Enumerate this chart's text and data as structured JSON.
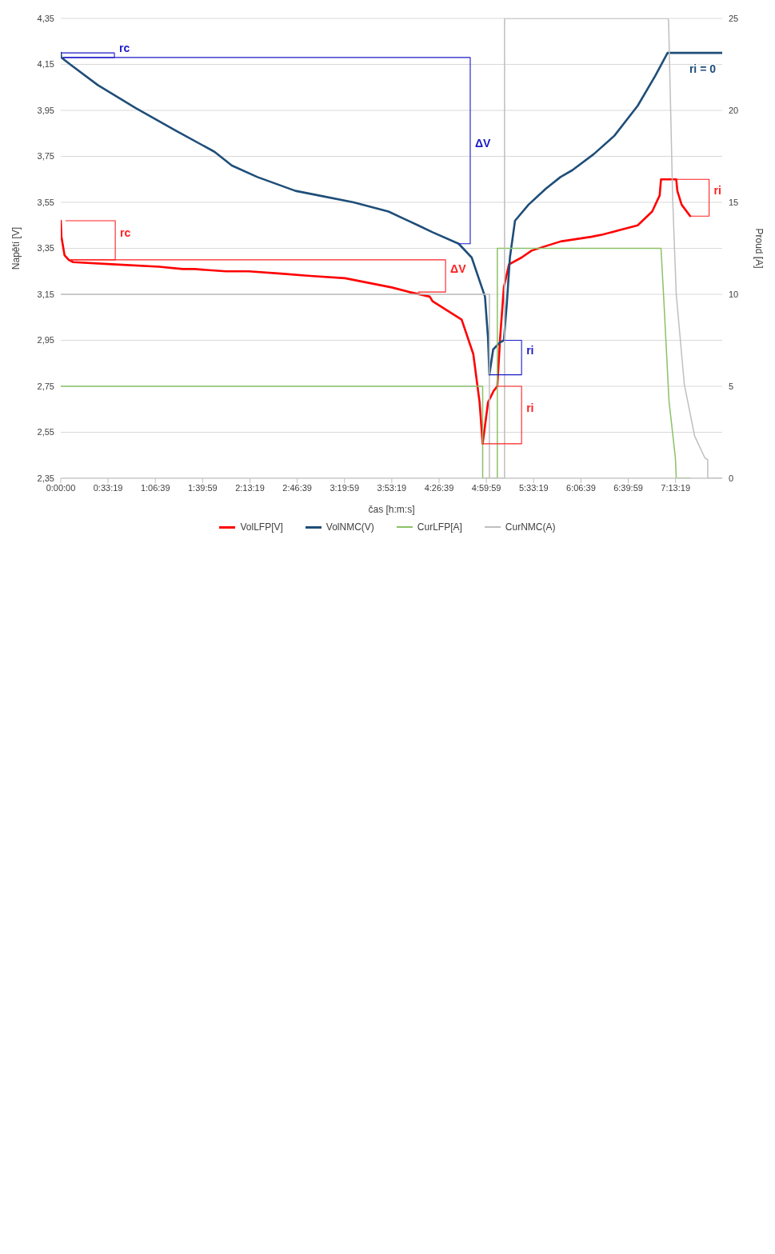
{
  "chart_data": {
    "type": "line",
    "xlabel": "čas [h:m:s]",
    "ylabel": "Napětí [V]",
    "y2label": "Proud [A]",
    "xlim": [
      0,
      7.77
    ],
    "xticks": [
      {
        "value": 0,
        "label": "0:00:00"
      },
      {
        "value": 0.5553,
        "label": "0:33:19"
      },
      {
        "value": 1.1108,
        "label": "1:06:39"
      },
      {
        "value": 1.6664,
        "label": "1:39:59"
      },
      {
        "value": 2.2219,
        "label": "2:13:19"
      },
      {
        "value": 2.7775,
        "label": "2:46:39"
      },
      {
        "value": 3.3331,
        "label": "3:19:59"
      },
      {
        "value": 3.8886,
        "label": "3:53:19"
      },
      {
        "value": 4.4442,
        "label": "4:26:39"
      },
      {
        "value": 4.9997,
        "label": "4:59:59"
      },
      {
        "value": 5.5553,
        "label": "5:33:19"
      },
      {
        "value": 6.1108,
        "label": "6:06:39"
      },
      {
        "value": 6.6664,
        "label": "6:39:59"
      },
      {
        "value": 7.2219,
        "label": "7:13:19"
      }
    ],
    "ylim": [
      2.35,
      4.35
    ],
    "yticks": [
      {
        "value": 2.35,
        "label": "2,35"
      },
      {
        "value": 2.55,
        "label": "2,55"
      },
      {
        "value": 2.75,
        "label": "2,75"
      },
      {
        "value": 2.95,
        "label": "2,95"
      },
      {
        "value": 3.15,
        "label": "3,15"
      },
      {
        "value": 3.35,
        "label": "3,35"
      },
      {
        "value": 3.55,
        "label": "3,55"
      },
      {
        "value": 3.75,
        "label": "3,75"
      },
      {
        "value": 3.95,
        "label": "3,95"
      },
      {
        "value": 4.15,
        "label": "4,15"
      },
      {
        "value": 4.35,
        "label": "4,35"
      }
    ],
    "y2lim": [
      0,
      25
    ],
    "y2ticks": [
      0,
      5,
      10,
      15,
      20,
      25
    ],
    "grid": "y",
    "legend": "bottom",
    "marker": "none",
    "series": [
      {
        "name": "VolLFP[V]",
        "color": "#ff0000",
        "x": [
          0,
          0.008,
          0.044,
          0.093,
          0.145,
          0.64,
          1.156,
          1.43,
          1.567,
          1.942,
          2.208,
          2.586,
          2.93,
          3.34,
          3.613,
          3.887,
          4.093,
          4.334,
          4.367,
          4.709,
          4.846,
          4.92,
          4.956,
          5.019,
          5.085,
          5.128,
          5.161,
          5.205,
          5.265,
          5.413,
          5.531,
          5.7,
          5.873,
          6.23,
          6.367,
          6.572,
          6.777,
          6.947,
          7.035,
          7.051,
          7.23,
          7.243,
          7.293,
          7.394
        ],
        "values": [
          3.47,
          3.4,
          3.32,
          3.3,
          3.29,
          3.28,
          3.27,
          3.26,
          3.26,
          3.25,
          3.25,
          3.24,
          3.23,
          3.22,
          3.2,
          3.18,
          3.16,
          3.14,
          3.12,
          3.04,
          2.89,
          2.68,
          2.5,
          2.68,
          2.73,
          2.75,
          2.96,
          3.18,
          3.28,
          3.31,
          3.34,
          3.36,
          3.38,
          3.4,
          3.41,
          3.43,
          3.45,
          3.51,
          3.58,
          3.65,
          3.65,
          3.6,
          3.54,
          3.49
        ]
      },
      {
        "name": "VolNMC(V)",
        "color": "#1f4e79",
        "x": [
          0,
          0.005,
          0.11,
          0.435,
          0.88,
          1.36,
          1.805,
          2.01,
          2.31,
          2.756,
          3.03,
          3.44,
          3.85,
          4.197,
          4.367,
          4.674,
          4.827,
          4.983,
          5.019,
          5.035,
          5.079,
          5.156,
          5.205,
          5.24,
          5.276,
          5.336,
          5.495,
          5.7,
          5.87,
          6.01,
          6.262,
          6.504,
          6.777,
          6.983,
          7.128,
          7.77
        ],
        "values": [
          4.2,
          4.18,
          4.15,
          4.06,
          3.96,
          3.86,
          3.77,
          3.71,
          3.66,
          3.6,
          3.58,
          3.55,
          3.51,
          3.45,
          3.42,
          3.37,
          3.31,
          3.14,
          2.96,
          2.8,
          2.91,
          2.94,
          2.95,
          3.11,
          3.31,
          3.47,
          3.54,
          3.61,
          3.66,
          3.69,
          3.76,
          3.84,
          3.97,
          4.1,
          4.2,
          4.2
        ]
      },
      {
        "name": "CurLFP[A]",
        "color": "#8cc168",
        "axis": "y2",
        "x": [
          0,
          4.956,
          4.956,
          5.128,
          5.128,
          7.051,
          7.084,
          7.145,
          7.22,
          7.23,
          7.397
        ],
        "values": [
          5,
          5,
          0,
          0,
          12.5,
          12.5,
          9.7,
          4.2,
          1.1,
          0,
          0
        ]
      },
      {
        "name": "CurNMC(A)",
        "color": "#bfbfbf",
        "axis": "y2",
        "x": [
          0,
          5.035,
          5.035,
          5.213,
          5.213,
          7.13,
          7.14,
          7.161,
          7.188,
          7.23,
          7.325,
          7.446,
          7.567,
          7.6,
          7.6,
          7.77
        ],
        "values": [
          10,
          10,
          0,
          0,
          25,
          25,
          24.9,
          20.7,
          15.2,
          10,
          5.1,
          2.3,
          1.1,
          1.0,
          0,
          0
        ]
      },
      {
        "color": "#1a1ac8",
        "x": [
          0,
          0.63,
          0.63,
          0.03
        ],
        "values": [
          4.2,
          4.2,
          4.18,
          4.18
        ]
      },
      {
        "color": "#1a1ac8",
        "x": [
          0.03,
          4.81,
          4.81,
          4.674
        ],
        "values": [
          4.18,
          4.18,
          3.37,
          3.37
        ]
      },
      {
        "color": "#1a1ac8",
        "x": [
          5.215,
          5.413,
          5.413,
          5.035
        ],
        "values": [
          2.95,
          2.95,
          2.8,
          2.8
        ]
      },
      {
        "color": "#ff2020",
        "x": [
          0.06,
          0.64,
          0.64,
          0.12
        ],
        "values": [
          3.47,
          3.47,
          3.3,
          3.3
        ]
      },
      {
        "color": "#ff2020",
        "x": [
          0.12,
          4.52,
          4.52,
          4.2
        ],
        "values": [
          3.3,
          3.3,
          3.16,
          3.16
        ]
      },
      {
        "color": "#ff2020",
        "x": [
          5.128,
          5.413,
          5.413,
          4.956
        ],
        "values": [
          2.75,
          2.75,
          2.5,
          2.5
        ]
      },
      {
        "color": "#ff2020",
        "x": [
          7.23,
          7.616,
          7.616,
          7.394
        ],
        "values": [
          3.65,
          3.65,
          3.49,
          3.49
        ]
      }
    ],
    "annotations": [
      "rc",
      "ΔV",
      "ri",
      "rc",
      "ΔV",
      "ri",
      "ri",
      "ri = 0"
    ]
  }
}
